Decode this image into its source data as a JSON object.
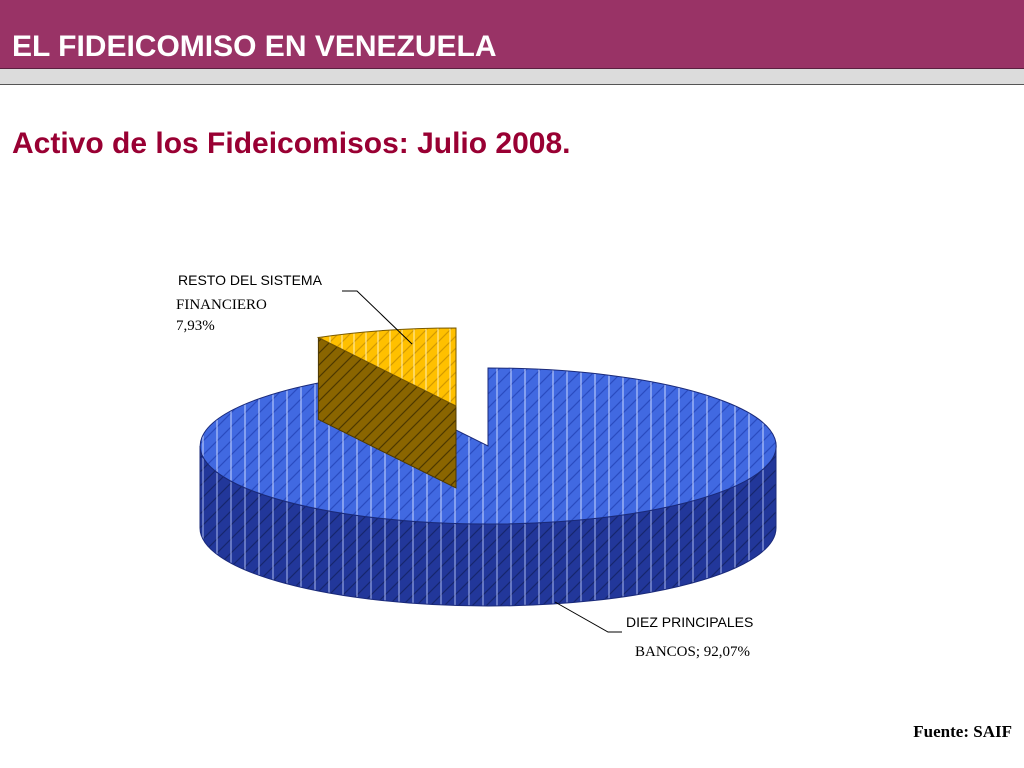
{
  "header": {
    "title": "EL FIDEICOMISO EN VENEZUELA"
  },
  "subtitle": "Activo de los Fideicomisos: Julio 2008.",
  "source": "Fuente: SAIF",
  "colors": {
    "header_band": "#993366",
    "subtitle": "#990033",
    "slice_bancos": "#4169e1",
    "slice_bancos_side": "#22379a",
    "slice_resto": "#ffc000",
    "slice_resto_side": "#7a5a00"
  },
  "chart_data": {
    "type": "pie",
    "style": "3d-exploded",
    "title": "",
    "slices": [
      {
        "label_line1": "DIEZ PRINCIPALES",
        "label_line2": "BANCOS; 92,07%",
        "value": 92.07
      },
      {
        "label_line1": "RESTO DEL SISTEMA",
        "label_line2": "FINANCIERO",
        "label_line3": "7,93%",
        "value": 7.93
      }
    ]
  }
}
